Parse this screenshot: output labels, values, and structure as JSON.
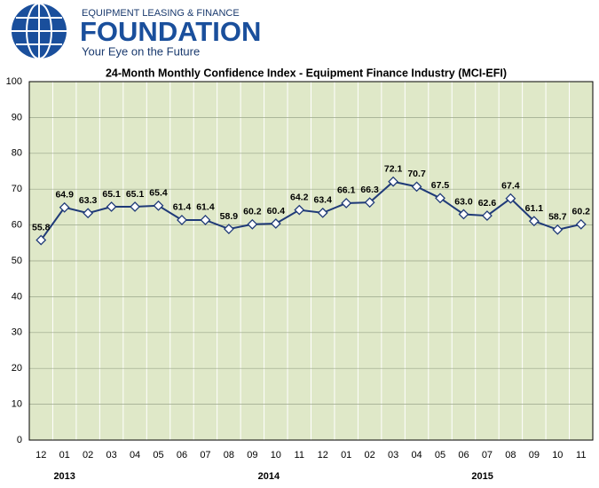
{
  "logo": {
    "line1": "EQUIPMENT LEASING & FINANCE",
    "name": "FOUNDATION",
    "tagline": "Your Eye on the Future"
  },
  "chart_data": {
    "type": "line",
    "title": "24-Month Monthly Confidence Index - Equipment Finance Industry (MCI-EFI)",
    "categories": [
      "12",
      "01",
      "02",
      "03",
      "04",
      "05",
      "06",
      "07",
      "08",
      "09",
      "10",
      "11",
      "12",
      "01",
      "02",
      "03",
      "04",
      "05",
      "06",
      "07",
      "08",
      "09",
      "10",
      "11"
    ],
    "year_labels": [
      "2013",
      "2014",
      "2015"
    ],
    "series": [
      {
        "color": "#1f3a78",
        "values": [
          55.8,
          64.9,
          63.3,
          65.1,
          65.1,
          65.4,
          61.4,
          61.4,
          58.9,
          60.2,
          60.4,
          64.2,
          63.4,
          66.1,
          66.3,
          72.1,
          70.7,
          67.5,
          63.0,
          62.6,
          67.4,
          61.1,
          58.7,
          60.2
        ],
        "value_labels": [
          "55.8",
          "64.9",
          "63.3",
          "65.1",
          "65.1",
          "65.4",
          "61.4",
          "61.4",
          "58.9",
          "60.2",
          "60.4",
          "64.2",
          "63.4",
          "66.1",
          "66.3",
          "72.1",
          "70.7",
          "67.5",
          "63.0",
          "62.6",
          "67.4",
          "61.1",
          "58.7",
          "60.2"
        ]
      }
    ],
    "ylim": [
      0,
      100
    ],
    "yticks": [
      0,
      10,
      20,
      30,
      40,
      50,
      60,
      70,
      80,
      90,
      100
    ],
    "grid": true
  }
}
